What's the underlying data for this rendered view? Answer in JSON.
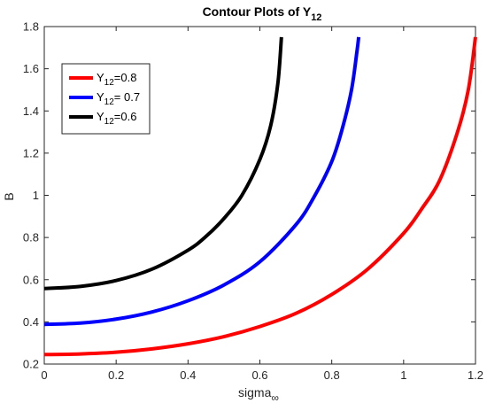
{
  "chart_data": {
    "type": "line",
    "title": "Contour Plots of Y",
    "title_sub": "12",
    "xlabel": "sigma",
    "xlabel_sub": "∞",
    "ylabel": "B",
    "xlim": [
      0,
      1.2
    ],
    "ylim": [
      0.2,
      1.8
    ],
    "xticks": [
      "0",
      "0.2",
      "0.4",
      "0.6",
      "0.8",
      "1",
      "1.2"
    ],
    "yticks": [
      "0.2",
      "0.4",
      "0.6",
      "0.8",
      "1",
      "1.2",
      "1.4",
      "1.6",
      "1.8"
    ],
    "grid": false,
    "legend_position": "top-left",
    "series": [
      {
        "name": "Y",
        "name_sub": "12",
        "name_suffix": "=0.8",
        "color": "#ff0000",
        "x": [
          0,
          0.1,
          0.2,
          0.3,
          0.4,
          0.5,
          0.6,
          0.7,
          0.8,
          0.9,
          1.0,
          1.05,
          1.1,
          1.15,
          1.18,
          1.2
        ],
        "y": [
          0.245,
          0.248,
          0.256,
          0.272,
          0.296,
          0.33,
          0.378,
          0.44,
          0.53,
          0.65,
          0.82,
          0.935,
          1.07,
          1.3,
          1.5,
          1.75
        ]
      },
      {
        "name": "Y",
        "name_sub": "12",
        "name_suffix": "= 0.7",
        "color": "#0000ff",
        "x": [
          0,
          0.1,
          0.2,
          0.3,
          0.4,
          0.5,
          0.6,
          0.7,
          0.75,
          0.8,
          0.83,
          0.855,
          0.87,
          0.875
        ],
        "y": [
          0.388,
          0.394,
          0.413,
          0.447,
          0.5,
          0.575,
          0.685,
          0.86,
          0.99,
          1.16,
          1.32,
          1.5,
          1.68,
          1.75
        ]
      },
      {
        "name": "Y",
        "name_sub": "12",
        "name_suffix": "=0.6",
        "color": "#000000",
        "x": [
          0,
          0.1,
          0.2,
          0.3,
          0.4,
          0.45,
          0.5,
          0.55,
          0.6,
          0.63,
          0.65,
          0.66
        ],
        "y": [
          0.558,
          0.568,
          0.596,
          0.65,
          0.74,
          0.805,
          0.89,
          1.0,
          1.17,
          1.33,
          1.53,
          1.75
        ]
      }
    ]
  }
}
